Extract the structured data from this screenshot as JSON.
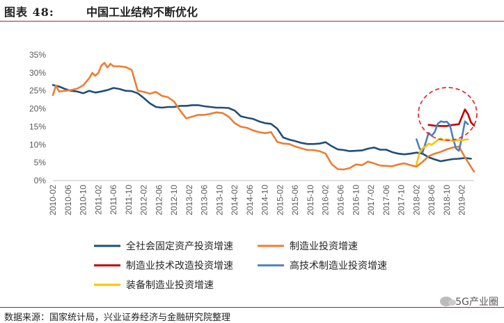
{
  "header": {
    "label": "图表 48:",
    "title": "中国工业结构不断优化"
  },
  "footer": {
    "source": "数据来源：国家统计局，兴业证券经济与金融研究院整理",
    "watermark": "5G产业圈"
  },
  "chart_data": {
    "type": "line",
    "ylim": [
      0,
      35
    ],
    "yticks": [
      "0%",
      "5%",
      "10%",
      "15%",
      "20%",
      "25%",
      "30%",
      "35%"
    ],
    "xlabels": [
      "2010-02",
      "2010-06",
      "2010-10",
      "2011-02",
      "2011-06",
      "2011-10",
      "2012-02",
      "2012-06",
      "2012-10",
      "2013-02",
      "2013-06",
      "2013-10",
      "2014-02",
      "2014-06",
      "2014-10",
      "2015-02",
      "2015-06",
      "2015-10",
      "2016-02",
      "2016-06",
      "2016-10",
      "2017-02",
      "2017-06",
      "2017-10",
      "2018-02",
      "2018-06",
      "2018-10",
      "2019-02"
    ],
    "grid": false,
    "legend_position": "bottom",
    "series": [
      {
        "name": "全社会固定资产投资增速",
        "color": "#1f4e79",
        "points": [
          [
            0,
            26.6
          ],
          [
            2,
            26.2
          ],
          [
            4,
            25.5
          ],
          [
            6,
            25
          ],
          [
            8,
            24.8
          ],
          [
            10,
            24.3
          ],
          [
            12,
            25
          ],
          [
            14,
            24.5
          ],
          [
            16,
            24.8
          ],
          [
            18,
            25.2
          ],
          [
            20,
            25.8
          ],
          [
            22,
            25.5
          ],
          [
            24,
            25
          ],
          [
            26,
            24.9
          ],
          [
            28,
            24.3
          ],
          [
            30,
            23
          ],
          [
            32,
            21.5
          ],
          [
            34,
            20.5
          ],
          [
            36,
            20.3
          ],
          [
            38,
            20.5
          ],
          [
            40,
            20.5
          ],
          [
            42,
            20.8
          ],
          [
            44,
            20.8
          ],
          [
            46,
            21
          ],
          [
            48,
            21
          ],
          [
            50,
            20.7
          ],
          [
            52,
            20.5
          ],
          [
            54,
            20.3
          ],
          [
            56,
            20.3
          ],
          [
            58,
            20.2
          ],
          [
            60,
            19.5
          ],
          [
            62,
            17.9
          ],
          [
            64,
            17.5
          ],
          [
            66,
            17.2
          ],
          [
            68,
            16.5
          ],
          [
            70,
            16
          ],
          [
            72,
            15.8
          ],
          [
            74,
            14.5
          ],
          [
            76,
            12
          ],
          [
            78,
            11.4
          ],
          [
            80,
            11
          ],
          [
            82,
            10.5
          ],
          [
            84,
            10.2
          ],
          [
            86,
            10.2
          ],
          [
            88,
            10.3
          ],
          [
            90,
            10.7
          ],
          [
            92,
            9.6
          ],
          [
            94,
            8.7
          ],
          [
            96,
            8.5
          ],
          [
            98,
            8.2
          ],
          [
            100,
            8.3
          ],
          [
            102,
            8.4
          ],
          [
            104,
            8.9
          ],
          [
            106,
            9.2
          ],
          [
            108,
            8.6
          ],
          [
            110,
            8.6
          ],
          [
            112,
            7.9
          ],
          [
            114,
            7.5
          ],
          [
            116,
            7.3
          ],
          [
            118,
            7.5
          ],
          [
            120,
            7.8
          ],
          [
            122,
            7.5
          ],
          [
            124,
            6.5
          ],
          [
            126,
            5.9
          ],
          [
            128,
            5.4
          ],
          [
            130,
            5.7
          ],
          [
            132,
            6
          ],
          [
            134,
            6.1
          ],
          [
            136,
            6.3
          ],
          [
            138,
            6.1
          ]
        ]
      },
      {
        "name": "制造业投资增速",
        "color": "#ed7d31",
        "points": [
          [
            0,
            23.8
          ],
          [
            1,
            26.5
          ],
          [
            2,
            24.8
          ],
          [
            4,
            25
          ],
          [
            6,
            25.2
          ],
          [
            8,
            25.6
          ],
          [
            10,
            26.5
          ],
          [
            12,
            28.5
          ],
          [
            13,
            30
          ],
          [
            14,
            29.2
          ],
          [
            15,
            30
          ],
          [
            16,
            32
          ],
          [
            17,
            32.8
          ],
          [
            18,
            31.5
          ],
          [
            19,
            32.5
          ],
          [
            20,
            31.8
          ],
          [
            22,
            31.8
          ],
          [
            24,
            31.6
          ],
          [
            26,
            30.8
          ],
          [
            28,
            25
          ],
          [
            30,
            24.7
          ],
          [
            32,
            24.2
          ],
          [
            34,
            24.7
          ],
          [
            36,
            23.6
          ],
          [
            38,
            23.2
          ],
          [
            40,
            22
          ],
          [
            42,
            19.5
          ],
          [
            44,
            17.3
          ],
          [
            46,
            17.8
          ],
          [
            48,
            18.3
          ],
          [
            50,
            18.3
          ],
          [
            52,
            18.6
          ],
          [
            54,
            19
          ],
          [
            56,
            18.8
          ],
          [
            58,
            17.8
          ],
          [
            60,
            16
          ],
          [
            62,
            15
          ],
          [
            64,
            14.7
          ],
          [
            66,
            14
          ],
          [
            68,
            13.5
          ],
          [
            70,
            13.2
          ],
          [
            72,
            13.5
          ],
          [
            74,
            10.8
          ],
          [
            76,
            10.3
          ],
          [
            78,
            10.2
          ],
          [
            80,
            9.5
          ],
          [
            82,
            9
          ],
          [
            84,
            8.5
          ],
          [
            86,
            8.5
          ],
          [
            88,
            8.2
          ],
          [
            90,
            7.5
          ],
          [
            92,
            4.6
          ],
          [
            94,
            3.2
          ],
          [
            96,
            3.1
          ],
          [
            98,
            3.5
          ],
          [
            100,
            4.5
          ],
          [
            102,
            4.3
          ],
          [
            104,
            5.3
          ],
          [
            106,
            4.8
          ],
          [
            108,
            4.2
          ],
          [
            110,
            4.1
          ],
          [
            112,
            4
          ],
          [
            114,
            4.5
          ],
          [
            116,
            4.8
          ],
          [
            118,
            4.3
          ],
          [
            120,
            3.9
          ],
          [
            122,
            5.2
          ],
          [
            124,
            6.8
          ],
          [
            126,
            7.5
          ],
          [
            128,
            8
          ],
          [
            130,
            8.7
          ],
          [
            132,
            9.2
          ],
          [
            134,
            9.5
          ],
          [
            136,
            6.5
          ],
          [
            138,
            3.8
          ],
          [
            139,
            2.5
          ]
        ]
      },
      {
        "name": "制造业技术改造投资增速",
        "color": "#c00000",
        "points": [
          [
            124,
            15.5
          ],
          [
            126,
            15.3
          ],
          [
            128,
            15.2
          ],
          [
            130,
            15.2
          ],
          [
            132,
            15.5
          ],
          [
            134,
            15.7
          ],
          [
            136,
            19.8
          ],
          [
            137,
            18.5
          ],
          [
            138,
            16.2
          ],
          [
            139,
            15.3
          ]
        ]
      },
      {
        "name": "高技术制造业投资增速",
        "color": "#4a7fc1",
        "points": [
          [
            120,
            11.5
          ],
          [
            121,
            9
          ],
          [
            122,
            7.8
          ],
          [
            123,
            10.5
          ],
          [
            124,
            13.3
          ],
          [
            125,
            12.5
          ],
          [
            126,
            13.5
          ],
          [
            127,
            15.8
          ],
          [
            128,
            16.5
          ],
          [
            129,
            16.3
          ],
          [
            130,
            16.4
          ],
          [
            131,
            15.5
          ],
          [
            132,
            12
          ],
          [
            133,
            9
          ],
          [
            134,
            8.3
          ],
          [
            135,
            12
          ],
          [
            136,
            16.5
          ],
          [
            137,
            15.7
          ]
        ]
      },
      {
        "name": "装备制造业投资增速",
        "color": "#ffc000",
        "points": [
          [
            120,
            4.5
          ],
          [
            121,
            7.8
          ],
          [
            122,
            9
          ],
          [
            123,
            9.5
          ],
          [
            124,
            10.3
          ],
          [
            125,
            10
          ],
          [
            126,
            10.6
          ],
          [
            127,
            11.3
          ],
          [
            128,
            11.8
          ],
          [
            129,
            11.2
          ],
          [
            130,
            11.5
          ],
          [
            131,
            11.3
          ],
          [
            132,
            11
          ],
          [
            133,
            11.2
          ],
          [
            134,
            11.3
          ],
          [
            135,
            11.2
          ],
          [
            136,
            11.4
          ],
          [
            137,
            11.5
          ]
        ]
      }
    ]
  }
}
